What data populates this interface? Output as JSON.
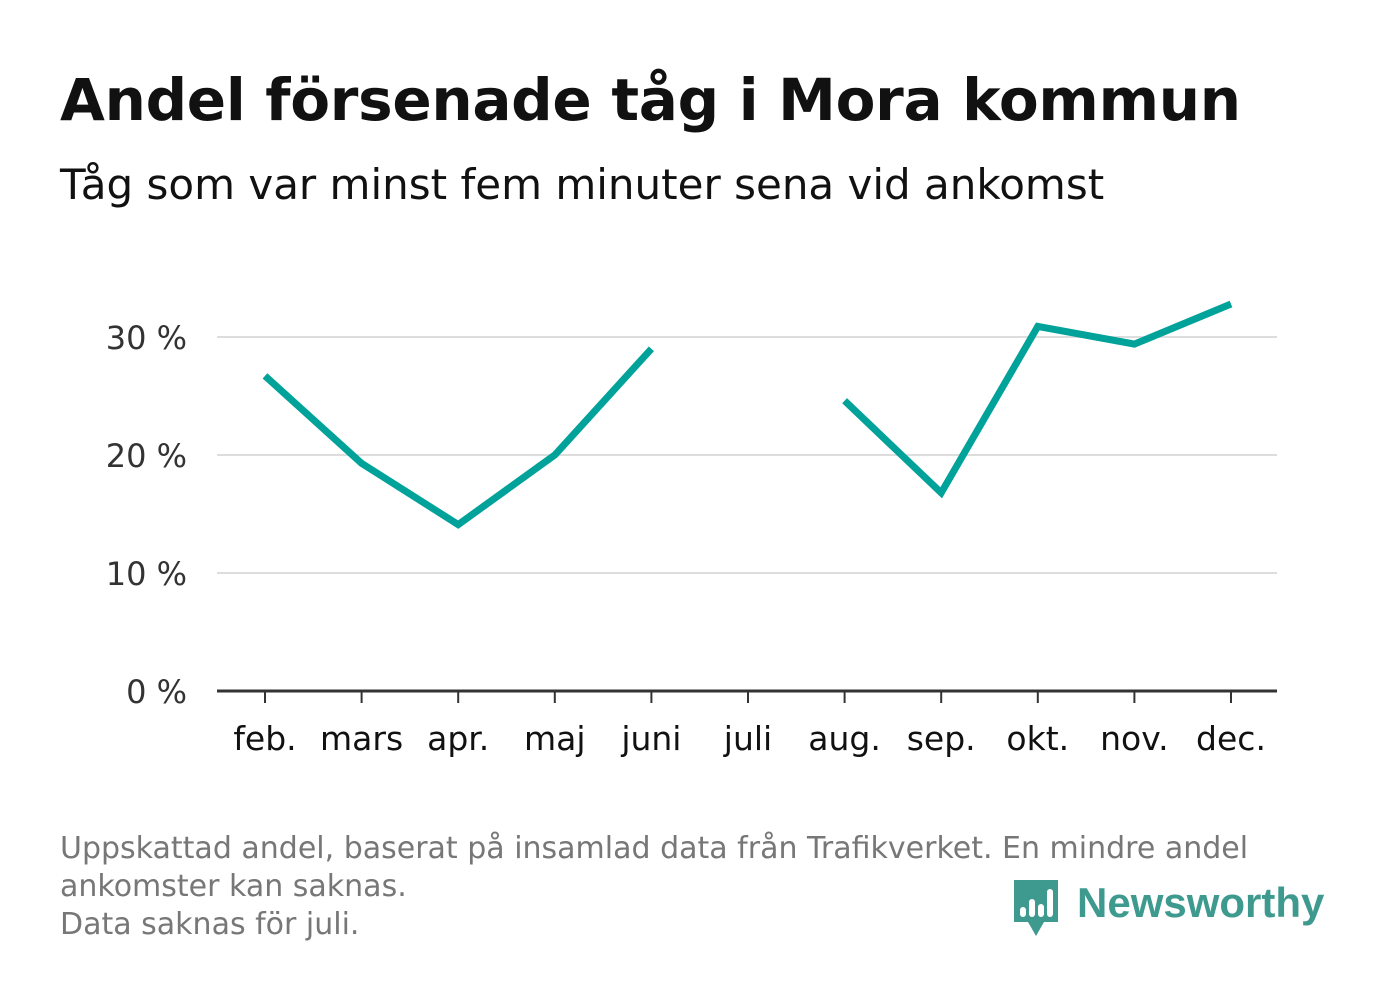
{
  "title": "Andel försenade tåg i Mora kommun",
  "subtitle": "Tåg som var minst fem minuter sena vid ankomst",
  "footnote": {
    "line1": "Uppskattad andel, baserat på insamlad data från Trafikverket. En mindre andel",
    "line2": "ankomster kan saknas.",
    "line3": "Data saknas för juli."
  },
  "brand": {
    "name": "Newsworthy",
    "icon": "bar-chart-speech-bubble-icon",
    "color": "#3e9a8e"
  },
  "colors": {
    "line": "#00a29a",
    "grid": "#dddddd",
    "axis": "#333333",
    "text": "#111111",
    "muted": "#777777"
  },
  "chart_data": {
    "type": "line",
    "categories": [
      "feb.",
      "mars",
      "apr.",
      "maj",
      "juni",
      "juli",
      "aug.",
      "sep.",
      "okt.",
      "nov.",
      "dec."
    ],
    "series": [
      {
        "values": [
          26.7,
          19.3,
          14.1,
          20.0,
          29.0,
          null,
          24.6,
          16.8,
          30.9,
          29.4,
          32.8
        ]
      }
    ],
    "yticks": [
      0,
      10,
      20,
      30
    ],
    "ytick_labels": [
      "0 %",
      "10 %",
      "20 %",
      "30 %"
    ],
    "ylim": [
      0,
      35
    ],
    "grid": true,
    "legend": "none"
  }
}
